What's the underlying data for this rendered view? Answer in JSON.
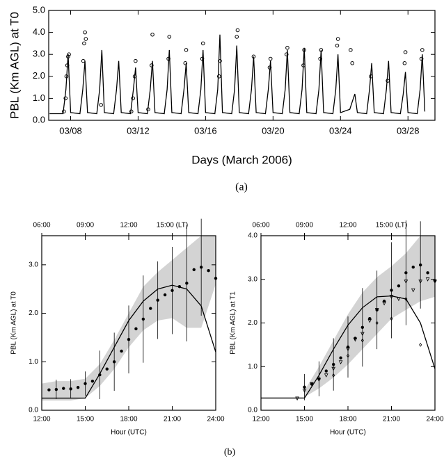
{
  "chart_data": [
    {
      "type": "line",
      "xlabel": "Days (March 2006)",
      "ylabel": "PBL (Km AGL) at T0",
      "caption": "(a)",
      "xlim": [
        6.7,
        29.6
      ],
      "ylim": [
        0,
        5
      ],
      "xticks": [
        {
          "value": 8,
          "label": "03/08"
        },
        {
          "value": 12,
          "label": "03/12"
        },
        {
          "value": 16,
          "label": "03/16"
        },
        {
          "value": 20,
          "label": "03/20"
        },
        {
          "value": 24,
          "label": "03/24"
        },
        {
          "value": 28,
          "label": "03/28"
        }
      ],
      "yticks": [
        {
          "value": 0,
          "label": "0.0"
        },
        {
          "value": 1,
          "label": "1.0"
        },
        {
          "value": 2,
          "label": "2.0"
        },
        {
          "value": 3,
          "label": "3.0"
        },
        {
          "value": 4,
          "label": "4.0"
        },
        {
          "value": 5,
          "label": "5.0"
        }
      ],
      "series": [
        {
          "style": "line",
          "color": "#000000",
          "x": [
            6.75,
            7.55,
            7.72,
            7.85,
            8.0,
            8.55,
            8.72,
            8.85,
            9.0,
            9.55,
            9.72,
            9.85,
            10.0,
            10.55,
            10.72,
            10.85,
            11.0,
            11.55,
            11.72,
            11.85,
            12.0,
            12.55,
            12.72,
            12.85,
            13.0,
            13.55,
            13.72,
            13.85,
            14.0,
            14.55,
            14.72,
            14.85,
            15.0,
            15.55,
            15.72,
            15.85,
            16.0,
            16.55,
            16.72,
            16.85,
            17.0,
            17.55,
            17.72,
            17.85,
            18.0,
            18.55,
            18.72,
            18.85,
            19.0,
            19.55,
            19.72,
            19.85,
            20.0,
            20.55,
            20.72,
            20.85,
            21.0,
            21.55,
            21.72,
            21.85,
            22.0,
            22.55,
            22.72,
            22.85,
            23.0,
            23.55,
            23.72,
            23.85,
            24.0,
            24.55,
            24.72,
            24.85,
            25.0,
            25.55,
            25.72,
            25.85,
            26.0,
            26.55,
            26.72,
            26.85,
            27.0,
            27.55,
            27.72,
            27.85,
            28.0,
            28.55,
            28.72,
            28.85,
            29.0
          ],
          "values": [
            0.3,
            0.3,
            1.4,
            3.0,
            0.35,
            0.3,
            1.4,
            2.7,
            0.35,
            0.3,
            1.4,
            3.2,
            0.35,
            0.3,
            1.4,
            2.7,
            0.35,
            0.3,
            1.4,
            2.4,
            0.35,
            0.3,
            1.4,
            2.7,
            0.35,
            0.3,
            1.4,
            3.2,
            0.35,
            0.3,
            1.4,
            2.6,
            0.35,
            0.3,
            1.4,
            3.2,
            0.35,
            0.3,
            1.4,
            3.9,
            0.35,
            0.3,
            1.4,
            3.4,
            0.35,
            0.3,
            1.4,
            2.9,
            0.35,
            0.3,
            1.4,
            2.7,
            0.35,
            0.3,
            1.4,
            3.2,
            0.35,
            0.3,
            1.4,
            3.3,
            0.35,
            0.3,
            1.4,
            3.2,
            0.35,
            0.3,
            1.4,
            3.0,
            0.35,
            0.5,
            0.9,
            1.2,
            0.35,
            0.3,
            1.4,
            2.6,
            0.35,
            0.3,
            1.4,
            2.7,
            0.35,
            0.3,
            1.2,
            2.2,
            0.35,
            0.3,
            1.4,
            3.0,
            0.4
          ]
        },
        {
          "style": "open-circle",
          "color": "#000000",
          "x": [
            7.6,
            7.7,
            7.75,
            7.8,
            7.85,
            7.9,
            8.75,
            8.8,
            8.85,
            8.9,
            9.8,
            11.6,
            11.7,
            11.8,
            11.85,
            12.6,
            12.8,
            12.85,
            13.8,
            13.85,
            14.8,
            14.85,
            15.8,
            15.85,
            16.8,
            16.85,
            17.85,
            17.9,
            18.85,
            19.8,
            19.85,
            20.8,
            20.85,
            21.8,
            21.85,
            22.8,
            22.85,
            23.8,
            23.85,
            24.6,
            24.7,
            25.8,
            26.8,
            27.8,
            27.85,
            28.8,
            28.85
          ],
          "values": [
            0.4,
            1.0,
            2.0,
            2.5,
            2.9,
            3.0,
            2.7,
            3.5,
            4.0,
            3.7,
            0.7,
            0.4,
            1.0,
            2.0,
            2.7,
            0.5,
            2.5,
            3.9,
            2.8,
            3.8,
            2.6,
            3.2,
            2.8,
            3.5,
            2.0,
            2.7,
            3.8,
            4.1,
            2.9,
            2.4,
            2.8,
            3.0,
            3.3,
            2.5,
            3.2,
            2.8,
            3.2,
            3.4,
            3.7,
            3.2,
            2.6,
            2.0,
            1.8,
            2.6,
            3.1,
            2.8,
            3.2
          ]
        }
      ]
    },
    {
      "type": "line",
      "xlabel": "Hour (UTC)",
      "ylabel": "PBL (Km AGL) at T0",
      "caption": "(b)",
      "xlim": [
        12,
        24
      ],
      "ylim": [
        0,
        3.6
      ],
      "xticks": [
        {
          "value": 12,
          "label": "12:00"
        },
        {
          "value": 15,
          "label": "15:00"
        },
        {
          "value": 18,
          "label": "18:00"
        },
        {
          "value": 21,
          "label": "21:00"
        },
        {
          "value": 24,
          "label": "24:00"
        }
      ],
      "top_xticks": [
        {
          "value": 12,
          "label": "06:00"
        },
        {
          "value": 15,
          "label": "09:00"
        },
        {
          "value": 18,
          "label": "12:00"
        },
        {
          "value": 21,
          "label": "15:00 (LT)"
        }
      ],
      "yticks": [
        {
          "value": 0,
          "label": "0.0"
        },
        {
          "value": 1,
          "label": "1.0"
        },
        {
          "value": 2,
          "label": "2.0"
        },
        {
          "value": 3,
          "label": "3.0"
        }
      ],
      "series": [
        {
          "style": "band",
          "color": "#d3d3d3",
          "x": [
            12,
            13,
            14,
            15,
            16,
            17,
            18,
            19,
            20,
            21,
            22,
            23,
            24
          ],
          "low": [
            0.2,
            0.2,
            0.2,
            0.25,
            0.5,
            0.85,
            1.3,
            1.65,
            1.85,
            1.9,
            1.7,
            1.7,
            2.6
          ],
          "high": [
            0.55,
            0.6,
            0.6,
            0.65,
            0.95,
            1.45,
            2.0,
            2.55,
            2.85,
            3.1,
            3.35,
            3.6,
            3.6
          ]
        },
        {
          "style": "line",
          "color": "#000000",
          "x": [
            12,
            13,
            14,
            15,
            16,
            17,
            18,
            19,
            20,
            21,
            22,
            23,
            24
          ],
          "values": [
            0.25,
            0.25,
            0.25,
            0.25,
            0.75,
            1.3,
            1.85,
            2.25,
            2.5,
            2.58,
            2.5,
            2.15,
            1.2
          ]
        },
        {
          "style": "dot",
          "color": "#000000",
          "x": [
            12.5,
            13,
            13.5,
            14,
            14.5,
            15,
            15.5,
            16,
            16.5,
            17,
            17.5,
            18,
            18.5,
            19,
            19.5,
            20,
            20.5,
            21,
            21.5,
            22,
            22.5,
            23,
            23.5,
            24
          ],
          "values": [
            0.42,
            0.43,
            0.45,
            0.44,
            0.47,
            0.55,
            0.6,
            0.73,
            0.85,
            1.0,
            1.22,
            1.46,
            1.68,
            1.88,
            2.1,
            2.27,
            2.38,
            2.47,
            2.55,
            2.62,
            2.9,
            2.95,
            2.88,
            2.72
          ],
          "errors": [
            null,
            0.2,
            null,
            0.2,
            null,
            0.25,
            null,
            0.5,
            null,
            0.6,
            null,
            0.7,
            null,
            0.9,
            null,
            0.8,
            null,
            0.9,
            null,
            1.2,
            null,
            1.0,
            null,
            null
          ]
        }
      ]
    },
    {
      "type": "line",
      "xlabel": "Hour (UTC)",
      "ylabel": "PBL (Km AGL) at T1",
      "xlim": [
        12,
        24
      ],
      "ylim": [
        0,
        4
      ],
      "xticks": [
        {
          "value": 12,
          "label": "12:00"
        },
        {
          "value": 15,
          "label": "15:00"
        },
        {
          "value": 18,
          "label": "18:00"
        },
        {
          "value": 21,
          "label": "21:00"
        },
        {
          "value": 24,
          "label": "24:00"
        }
      ],
      "top_xticks": [
        {
          "value": 12,
          "label": "06:00"
        },
        {
          "value": 15,
          "label": "09:00"
        },
        {
          "value": 18,
          "label": "12:00"
        },
        {
          "value": 21,
          "label": "15:00 (LT)"
        }
      ],
      "yticks": [
        {
          "value": 0,
          "label": "0.0"
        },
        {
          "value": 1,
          "label": "1.0"
        },
        {
          "value": 2,
          "label": "2.0"
        },
        {
          "value": 3,
          "label": "3.0"
        },
        {
          "value": 4,
          "label": "4.0"
        }
      ],
      "series": [
        {
          "style": "band",
          "color": "#d3d3d3",
          "x": [
            15,
            16,
            17,
            18,
            19,
            20,
            21,
            22,
            23,
            24
          ],
          "low": [
            0.3,
            0.5,
            0.75,
            1.05,
            1.4,
            1.75,
            2.1,
            2.3,
            2.5,
            2.6
          ],
          "high": [
            0.45,
            1.0,
            1.6,
            2.2,
            2.7,
            3.05,
            3.3,
            3.6,
            4.0,
            4.0
          ]
        },
        {
          "style": "line",
          "color": "#000000",
          "x": [
            12,
            13,
            14,
            15,
            16,
            17,
            18,
            19,
            20,
            21,
            22,
            23,
            24
          ],
          "values": [
            0.28,
            0.28,
            0.28,
            0.28,
            0.8,
            1.4,
            1.95,
            2.35,
            2.6,
            2.62,
            2.55,
            2.0,
            0.95
          ]
        },
        {
          "style": "open-triangle",
          "color": "#000000",
          "x": [
            14.5,
            15,
            15.5,
            16,
            16.5,
            17,
            17.5,
            18,
            18.5,
            19,
            19.5,
            20,
            20.5,
            21,
            21.5,
            22,
            22.5,
            23,
            23.5,
            24
          ],
          "values": [
            0.27,
            0.45,
            0.6,
            0.7,
            0.8,
            0.95,
            1.1,
            1.4,
            1.62,
            1.75,
            2.05,
            2.3,
            2.45,
            2.6,
            2.55,
            2.95,
            2.75,
            2.95,
            3.0,
            2.95
          ]
        },
        {
          "style": "open-diamond",
          "color": "#000000",
          "x": [
            17,
            18,
            19,
            20,
            21,
            22,
            23
          ],
          "values": [
            0.8,
            1.25,
            1.6,
            2.0,
            2.1,
            2.55,
            1.5
          ]
        },
        {
          "style": "dot",
          "color": "#000000",
          "x": [
            15,
            15.5,
            16,
            16.5,
            17,
            17.5,
            18,
            18.5,
            19,
            19.5,
            20,
            20.5,
            21,
            21.5,
            22,
            22.5,
            23,
            23.5,
            24
          ],
          "values": [
            0.53,
            0.6,
            0.72,
            0.9,
            1.05,
            1.2,
            1.45,
            1.65,
            1.9,
            2.1,
            2.3,
            2.5,
            2.75,
            2.85,
            3.15,
            3.28,
            3.33,
            3.15,
            2.97
          ],
          "errors": [
            0.3,
            null,
            0.4,
            null,
            0.6,
            null,
            0.7,
            null,
            0.9,
            null,
            0.9,
            null,
            1.1,
            null,
            1.2,
            null,
            1.0,
            null,
            null
          ]
        }
      ]
    }
  ]
}
